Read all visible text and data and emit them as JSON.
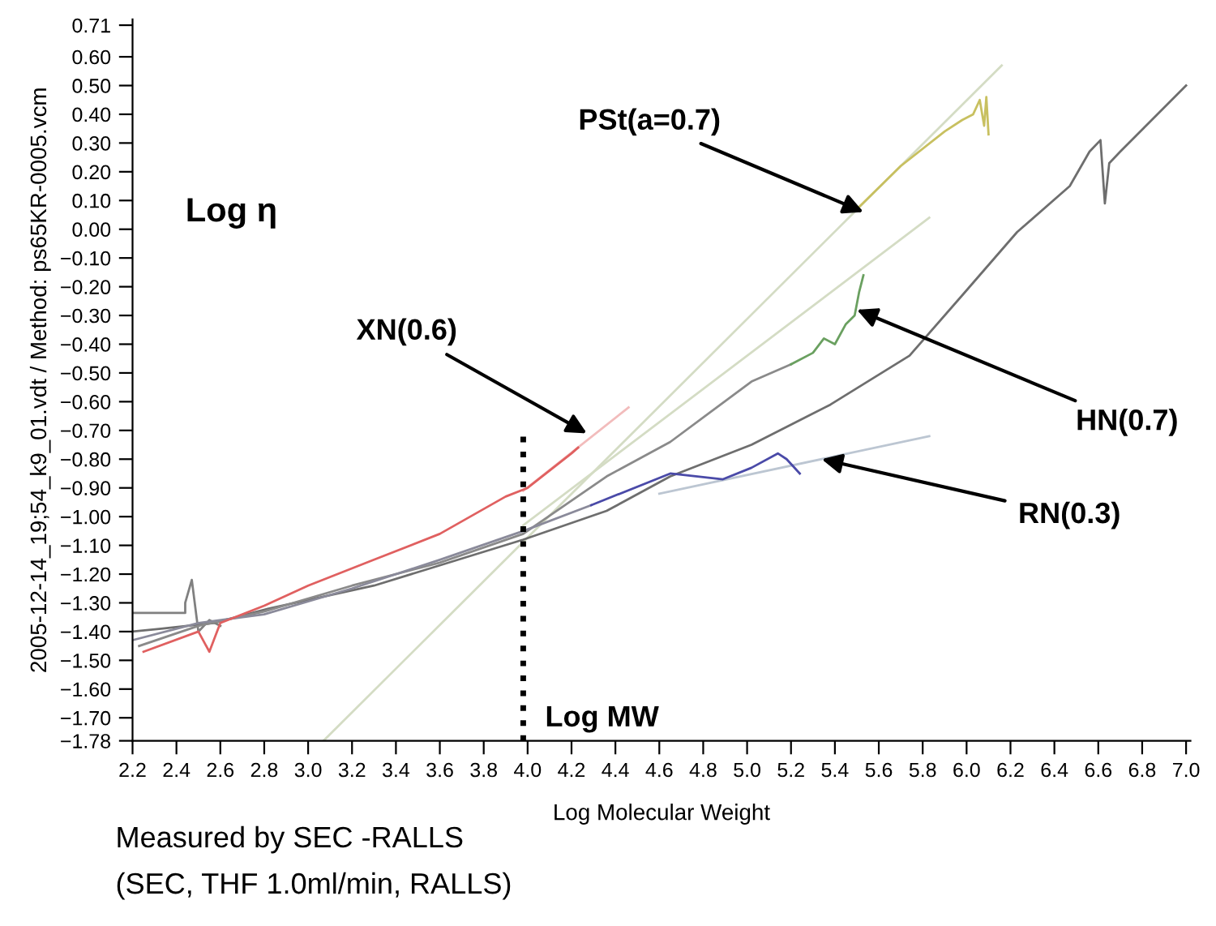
{
  "chart_data": {
    "type": "line",
    "xlabel": "Log Molecular Weight",
    "ylabel": "2005-12-14_19;54_k9_01.vdt / Method: ps65KR-0005.vcm",
    "xlim": [
      2.2,
      7.02
    ],
    "ylim": [
      -1.78,
      0.73
    ],
    "xticks": [
      {
        "value": 2.2,
        "label": "2.2"
      },
      {
        "value": 2.4,
        "label": "2.4"
      },
      {
        "value": 2.6,
        "label": "2.6"
      },
      {
        "value": 2.8,
        "label": "2.8"
      },
      {
        "value": 3.0,
        "label": "3.0"
      },
      {
        "value": 3.2,
        "label": "3.2"
      },
      {
        "value": 3.4,
        "label": "3.4"
      },
      {
        "value": 3.6,
        "label": "3.6"
      },
      {
        "value": 3.8,
        "label": "3.8"
      },
      {
        "value": 4.0,
        "label": "4.0"
      },
      {
        "value": 4.2,
        "label": "4.2"
      },
      {
        "value": 4.4,
        "label": "4.4"
      },
      {
        "value": 4.6,
        "label": "4.6"
      },
      {
        "value": 4.8,
        "label": "4.8"
      },
      {
        "value": 5.0,
        "label": "5.0"
      },
      {
        "value": 5.2,
        "label": "5.2"
      },
      {
        "value": 5.4,
        "label": "5.4"
      },
      {
        "value": 5.6,
        "label": "5.6"
      },
      {
        "value": 5.8,
        "label": "5.8"
      },
      {
        "value": 6.0,
        "label": "6.0"
      },
      {
        "value": 6.2,
        "label": "6.2"
      },
      {
        "value": 6.4,
        "label": "6.4"
      },
      {
        "value": 6.6,
        "label": "6.6"
      },
      {
        "value": 6.8,
        "label": "6.8"
      },
      {
        "value": 7.0,
        "label": "7.0"
      }
    ],
    "yticks": [
      {
        "value": 0.71,
        "label": "0.71"
      },
      {
        "value": 0.6,
        "label": "0.60"
      },
      {
        "value": 0.5,
        "label": "0.50"
      },
      {
        "value": 0.4,
        "label": "0.40"
      },
      {
        "value": 0.3,
        "label": "0.30"
      },
      {
        "value": 0.2,
        "label": "0.20"
      },
      {
        "value": 0.1,
        "label": "0.10"
      },
      {
        "value": 0.0,
        "label": "0.00"
      },
      {
        "value": -0.1,
        "label": "−0.10"
      },
      {
        "value": -0.2,
        "label": "−0.20"
      },
      {
        "value": -0.3,
        "label": "−0.30"
      },
      {
        "value": -0.4,
        "label": "−0.40"
      },
      {
        "value": -0.5,
        "label": "−0.50"
      },
      {
        "value": -0.6,
        "label": "−0.60"
      },
      {
        "value": -0.7,
        "label": "−0.70"
      },
      {
        "value": -0.8,
        "label": "−0.80"
      },
      {
        "value": -0.9,
        "label": "−0.90"
      },
      {
        "value": -1.0,
        "label": "−1.00"
      },
      {
        "value": -1.1,
        "label": "−1.10"
      },
      {
        "value": -1.2,
        "label": "−1.20"
      },
      {
        "value": -1.3,
        "label": "−1.30"
      },
      {
        "value": -1.4,
        "label": "−1.40"
      },
      {
        "value": -1.5,
        "label": "−1.50"
      },
      {
        "value": -1.6,
        "label": "−1.60"
      },
      {
        "value": -1.7,
        "label": "−1.70"
      },
      {
        "value": -1.78,
        "label": "−1.78"
      }
    ],
    "grid": false,
    "legend": false,
    "series": [
      {
        "color": "#d4dcc4",
        "x": [
          3.07,
          6.16
        ],
        "values": [
          -1.78,
          0.57
        ]
      },
      {
        "color": "#d4dcc4",
        "x": [
          3.98,
          5.83
        ],
        "values": [
          -1.03,
          0.04
        ]
      },
      {
        "color": "#f2bcbc",
        "x": [
          3.98,
          4.46
        ],
        "values": [
          -0.91,
          -0.62
        ]
      },
      {
        "color": "#bcc6d2",
        "x": [
          4.6,
          5.83
        ],
        "values": [
          -0.92,
          -0.72
        ]
      },
      {
        "color": "#808080",
        "x": [
          2.2,
          2.44,
          2.44,
          2.47,
          2.5,
          2.55,
          2.6
        ],
        "values": [
          -1.335,
          -1.335,
          -1.3,
          -1.22,
          -1.4,
          -1.36,
          -1.38
        ]
      },
      {
        "color": "#6e6e6e",
        "x": [
          2.2,
          2.33,
          2.57,
          2.82,
          3.3,
          3.98,
          4.36,
          4.65,
          5.02,
          5.38,
          5.74,
          5.98,
          6.23,
          6.47,
          6.56,
          6.61,
          6.63,
          6.65,
          6.7,
          7.0
        ],
        "values": [
          -1.4,
          -1.39,
          -1.37,
          -1.32,
          -1.24,
          -1.08,
          -0.98,
          -0.86,
          -0.75,
          -0.61,
          -0.44,
          -0.23,
          -0.01,
          0.15,
          0.27,
          0.31,
          0.09,
          0.23,
          0.27,
          0.5
        ]
      },
      {
        "color": "#8a8a8a",
        "x": [
          2.23,
          2.5,
          2.8,
          3.2,
          3.6,
          3.98,
          4.36,
          4.65,
          5.02,
          5.2
        ],
        "values": [
          -1.45,
          -1.38,
          -1.33,
          -1.24,
          -1.16,
          -1.06,
          -0.86,
          -0.74,
          -0.53,
          -0.47
        ]
      },
      {
        "color": "#6aa060",
        "x": [
          5.2,
          5.3,
          5.35,
          5.4,
          5.45,
          5.49,
          5.51,
          5.53
        ],
        "values": [
          -0.47,
          -0.43,
          -0.38,
          -0.4,
          -0.33,
          -0.3,
          -0.22,
          -0.16
        ]
      },
      {
        "color": "#8a8a9a",
        "x": [
          2.2,
          2.5,
          2.8,
          3.2,
          3.6,
          3.98,
          4.29
        ],
        "values": [
          -1.43,
          -1.37,
          -1.34,
          -1.25,
          -1.15,
          -1.05,
          -0.96
        ]
      },
      {
        "color": "#4a4aa8",
        "x": [
          4.29,
          4.65,
          4.89,
          5.02,
          5.14,
          5.18,
          5.24
        ],
        "values": [
          -0.96,
          -0.85,
          -0.87,
          -0.83,
          -0.78,
          -0.8,
          -0.85
        ]
      },
      {
        "color": "#e06060",
        "x": [
          2.25,
          2.5,
          2.55,
          2.6,
          2.8,
          3.0,
          3.3,
          3.6,
          3.9,
          4.0,
          4.1,
          4.2,
          4.23
        ],
        "values": [
          -1.47,
          -1.4,
          -1.47,
          -1.37,
          -1.31,
          -1.24,
          -1.15,
          -1.06,
          -0.93,
          -0.9,
          -0.84,
          -0.78,
          -0.76
        ]
      },
      {
        "color": "#c8c060",
        "x": [
          5.5,
          5.7,
          5.9,
          5.98,
          6.03,
          6.06,
          6.08,
          6.09,
          6.1
        ],
        "values": [
          0.07,
          0.22,
          0.34,
          0.38,
          0.4,
          0.45,
          0.36,
          0.46,
          0.33
        ]
      },
      {
        "color": "#000000",
        "line_style": "dotted",
        "x": [
          3.98,
          3.98
        ],
        "values": [
          -1.78,
          -0.72
        ]
      }
    ],
    "annotations": [
      {
        "text": "PSt(a=0.7)",
        "x": 5.53,
        "y": 0.06
      },
      {
        "text": "XN(0.6)",
        "x": 4.27,
        "y": -0.71
      },
      {
        "text": "HN(0.7)",
        "x": 5.5,
        "y": -0.28
      },
      {
        "text": "RN(0.3)",
        "x": 5.34,
        "y": -0.8
      },
      "Log η",
      "Log MW",
      "Measured by SEC -RALLS",
      "(SEC, THF 1.0ml/min, RALLS)"
    ]
  }
}
